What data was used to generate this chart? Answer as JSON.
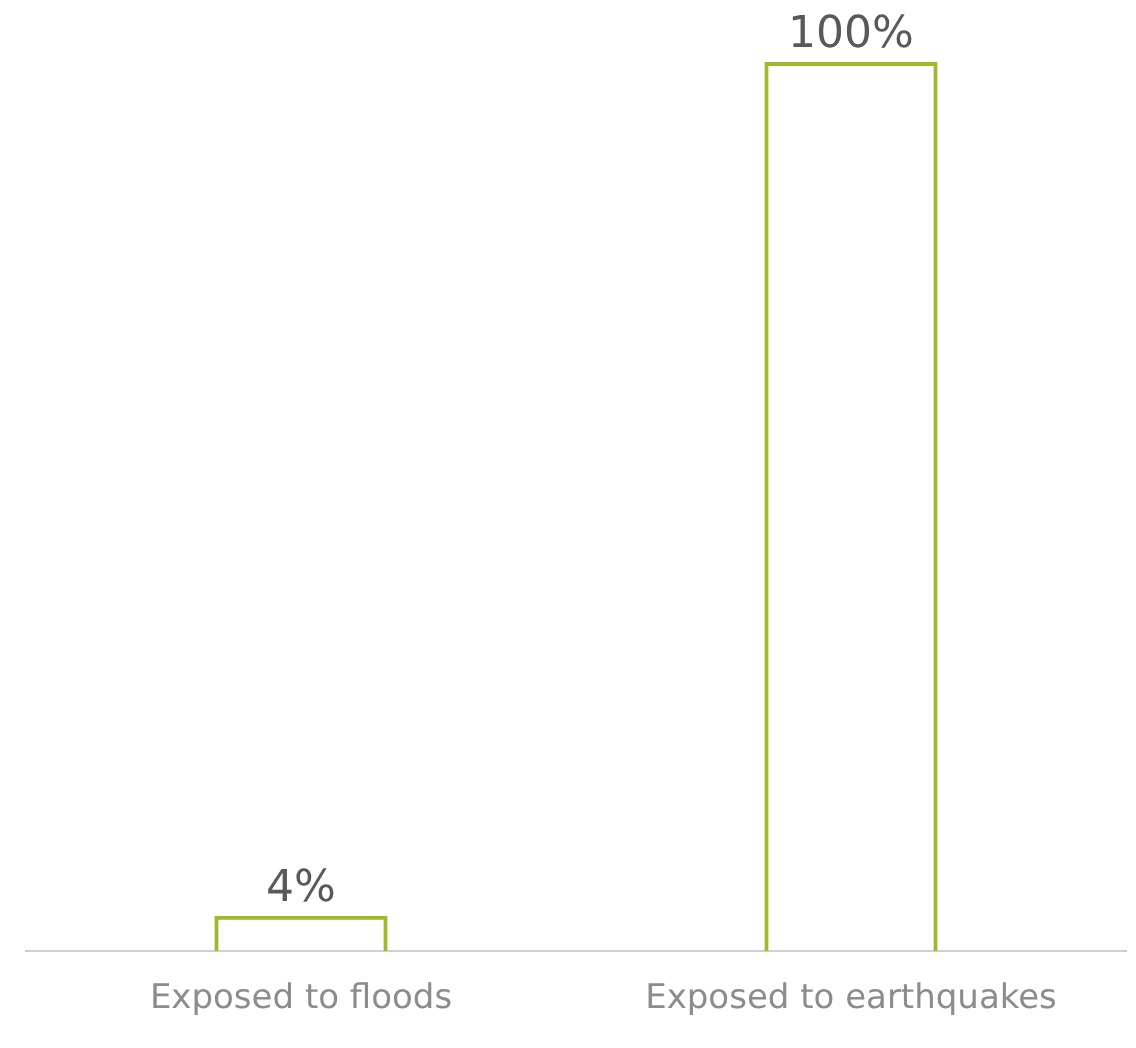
{
  "chart_data": {
    "type": "bar",
    "categories": [
      "Exposed to floods",
      "Exposed to earthquakes"
    ],
    "values": [
      4,
      100
    ],
    "color": "#9bba2c",
    "value_labels": [
      "4%",
      "100%"
    ],
    "ylim": [
      0,
      100
    ],
    "tick_labels": "x",
    "grid": false,
    "legend": false
  }
}
